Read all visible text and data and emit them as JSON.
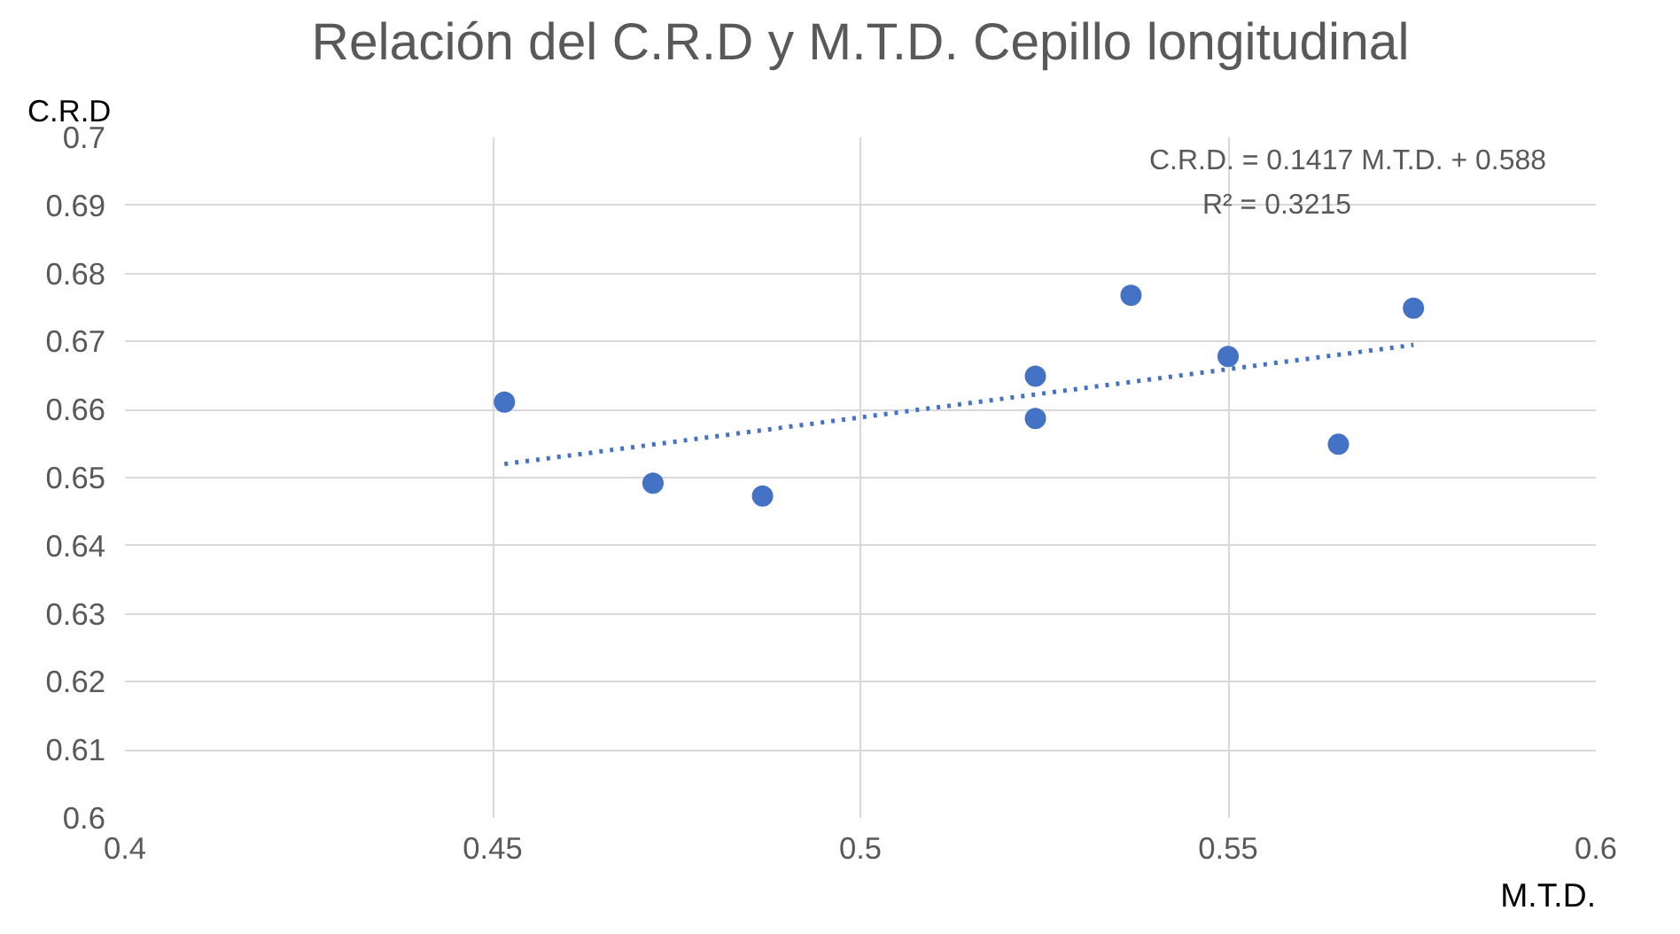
{
  "chart_data": {
    "type": "scatter",
    "title": "Relación del C.R.D y M.T.D. Cepillo longitudinal",
    "xlabel": "M.T.D.",
    "ylabel": "C.R.D",
    "series": [
      {
        "color": "#4472c4",
        "marker": "circle",
        "x": [
          0.4516,
          0.4718,
          0.4867,
          0.5238,
          0.5238,
          0.5368,
          0.55,
          0.565,
          0.5752
        ],
        "values": [
          0.6611,
          0.6492,
          0.6473,
          0.6649,
          0.6587,
          0.6768,
          0.6678,
          0.6549,
          0.6749
        ]
      },
      {
        "type": "line",
        "color": "#4472c4",
        "line_style": "dotted",
        "x": [
          0.4516,
          0.5752
        ],
        "values": [
          0.652,
          0.6695
        ]
      }
    ],
    "annotations": [
      "C.R.D. = 0.1417 M.T.D. + 0.588",
      "R² = 0.3215"
    ],
    "xlim": [
      0.4,
      0.6
    ],
    "xticks": [
      0.4,
      0.45,
      0.5,
      0.55,
      0.6
    ],
    "ylim": [
      0.6,
      0.7
    ],
    "yticks": [
      0.6,
      0.61,
      0.62,
      0.63,
      0.64,
      0.65,
      0.66,
      0.67,
      0.68,
      0.69,
      0.7
    ],
    "grid": true
  }
}
